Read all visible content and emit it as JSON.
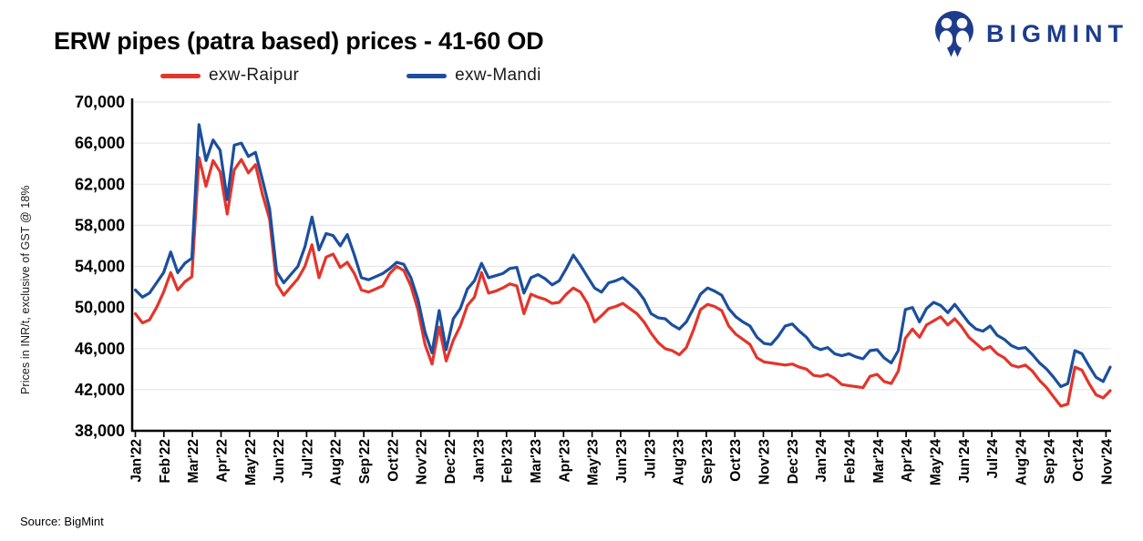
{
  "header": {
    "logo_text": "BIGMINT",
    "logo_color": "#1e3c8c"
  },
  "source": "Source: BigMint",
  "legend": {
    "items": [
      {
        "label": "exw-Raipur",
        "color": "#e3352b"
      },
      {
        "label": "exw-Mandi",
        "color": "#1b4f9e"
      }
    ]
  },
  "chart_data": {
    "type": "line",
    "title": "ERW pipes (patra based) prices - 41-60 OD",
    "xlabel": "",
    "ylabel": "Prices in INR/t, exclusive of GST @ 18%",
    "ylim": [
      38000,
      70000
    ],
    "ytick_step": 4000,
    "grid": "horizontal",
    "grid_color": "#e8e8e8",
    "legend_position": "top",
    "points_per_month": 4,
    "x_tick_labels": [
      "Jan'22",
      "Feb'22",
      "Mar'22",
      "Apr'22",
      "May'22",
      "Jun'22",
      "Jul'22",
      "Aug'22",
      "Sep'22",
      "Oct'22",
      "Nov'22",
      "Dec'22",
      "Jan'23",
      "Feb'23",
      "Mar'23",
      "Apr'23",
      "May'23",
      "Jun'23",
      "Jul'23",
      "Aug'23",
      "Sep'23",
      "Oct'23",
      "Nov'23",
      "Dec'23",
      "Jan'24",
      "Feb'24",
      "Mar'24",
      "Apr'24",
      "May'24",
      "Jun'24",
      "Jul'24",
      "Aug'24",
      "Sep'24",
      "Oct'24",
      "Nov'24"
    ],
    "series": [
      {
        "name": "exw-Raipur",
        "color": "#e3352b",
        "values": [
          49400,
          48500,
          48800,
          50000,
          51500,
          53400,
          51700,
          52500,
          53000,
          64600,
          61800,
          64300,
          63200,
          59100,
          63400,
          64400,
          63100,
          63900,
          61000,
          58600,
          52300,
          51200,
          52000,
          52800,
          54000,
          56100,
          52900,
          54900,
          55200,
          53900,
          54400,
          53300,
          51700,
          51500,
          51800,
          52100,
          53300,
          54000,
          53600,
          52100,
          49800,
          46400,
          44500,
          48100,
          44800,
          46800,
          48200,
          50200,
          51000,
          53400,
          51400,
          51600,
          51900,
          52300,
          52100,
          49400,
          51300,
          51000,
          50800,
          50400,
          50500,
          51300,
          51900,
          51500,
          50400,
          48600,
          49200,
          49900,
          50100,
          50400,
          49900,
          49400,
          48600,
          47500,
          46600,
          46000,
          45800,
          45400,
          46100,
          47800,
          49800,
          50300,
          50100,
          49700,
          48200,
          47400,
          46900,
          46400,
          45100,
          44700,
          44600,
          44500,
          44400,
          44500,
          44200,
          44000,
          43400,
          43300,
          43500,
          43100,
          42500,
          42400,
          42300,
          42200,
          43300,
          43500,
          42800,
          42600,
          43800,
          47000,
          47900,
          47100,
          48300,
          48700,
          49100,
          48300,
          48900,
          48100,
          47100,
          46500,
          45900,
          46200,
          45500,
          45100,
          44400,
          44200,
          44400,
          43800,
          42900,
          42200,
          41300,
          40400,
          40600,
          44200,
          43900,
          42600,
          41500,
          41200,
          41900
        ]
      },
      {
        "name": "exw-Mandi",
        "color": "#1b4f9e",
        "values": [
          51700,
          51000,
          51400,
          52400,
          53400,
          55400,
          53400,
          54300,
          54800,
          67800,
          64300,
          66300,
          65300,
          60500,
          65800,
          66000,
          64700,
          65100,
          62400,
          59600,
          53500,
          52400,
          53200,
          54000,
          55900,
          58800,
          55600,
          57200,
          57000,
          56000,
          57100,
          55100,
          52900,
          52700,
          53000,
          53300,
          53800,
          54400,
          54200,
          52900,
          50800,
          47600,
          45600,
          49700,
          45900,
          48900,
          49900,
          51800,
          52600,
          54300,
          52900,
          53100,
          53300,
          53800,
          53900,
          51400,
          52900,
          53200,
          52800,
          52200,
          52600,
          53800,
          55100,
          54100,
          53000,
          51900,
          51500,
          52400,
          52600,
          52900,
          52300,
          51700,
          50800,
          49400,
          49000,
          48900,
          48300,
          47900,
          48600,
          49900,
          51300,
          51900,
          51600,
          51200,
          49900,
          49100,
          48600,
          48200,
          47100,
          46500,
          46400,
          47200,
          48200,
          48400,
          47700,
          47100,
          46200,
          45900,
          46100,
          45500,
          45300,
          45500,
          45200,
          45000,
          45800,
          45900,
          45100,
          44600,
          45800,
          49800,
          50000,
          48600,
          49900,
          50500,
          50200,
          49500,
          50300,
          49400,
          48500,
          47900,
          47700,
          48200,
          47300,
          46900,
          46300,
          46000,
          46100,
          45400,
          44600,
          44000,
          43200,
          42300,
          42600,
          45800,
          45500,
          44300,
          43200,
          42800,
          44200
        ]
      }
    ]
  }
}
